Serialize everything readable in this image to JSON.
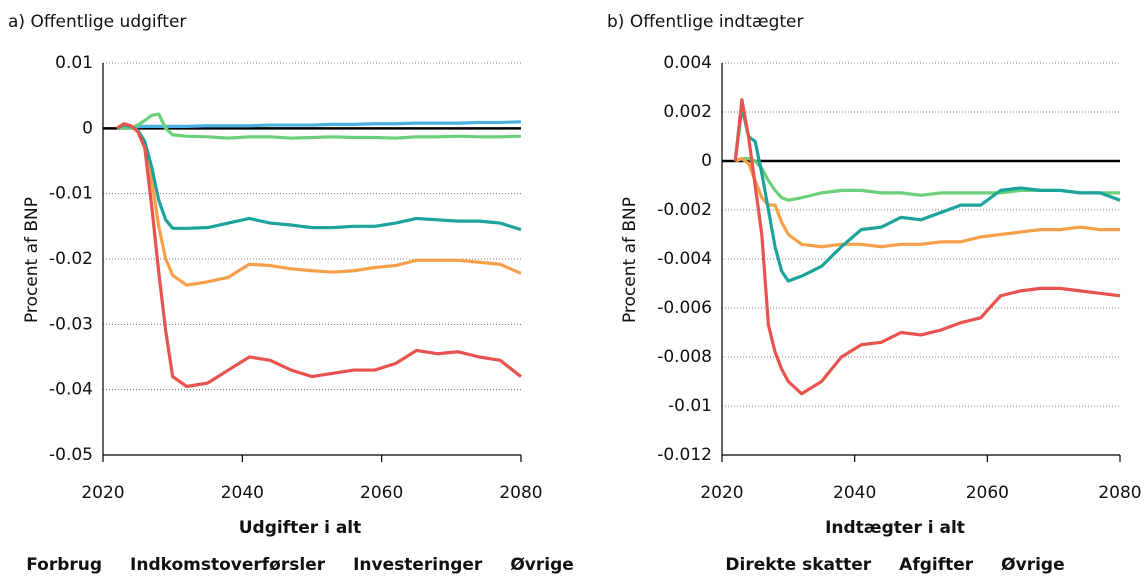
{
  "chart_data": [
    {
      "type": "line",
      "title": "a) Offentlige udgifter",
      "y_label": "Procent af BNP",
      "x": [
        2022,
        2023,
        2024,
        2025,
        2026,
        2027,
        2028,
        2029,
        2030,
        2032,
        2035,
        2038,
        2041,
        2044,
        2047,
        2050,
        2053,
        2056,
        2059,
        2062,
        2065,
        2068,
        2071,
        2074,
        2077,
        2080
      ],
      "xlim": [
        2020,
        2080
      ],
      "xticks": [
        2020,
        2040,
        2060,
        2080
      ],
      "ylim": [
        -0.05,
        0.01
      ],
      "yticks": [
        -0.05,
        -0.04,
        -0.03,
        -0.02,
        -0.01,
        0,
        0.01
      ],
      "grid": true,
      "series": [
        {
          "name": "Udgifter i alt",
          "color": "#e8524f",
          "values": [
            0,
            0.0007,
            0.0004,
            -0.0005,
            -0.003,
            -0.012,
            -0.022,
            -0.031,
            -0.038,
            -0.0395,
            -0.039,
            -0.037,
            -0.035,
            -0.0355,
            -0.037,
            -0.038,
            -0.0375,
            -0.037,
            -0.037,
            -0.036,
            -0.034,
            -0.0345,
            -0.0342,
            -0.035,
            -0.0355,
            -0.038
          ]
        },
        {
          "name": "Forbrug",
          "color": "#1ba39c",
          "values": [
            0,
            0.0005,
            0.0003,
            -0.0003,
            -0.002,
            -0.006,
            -0.011,
            -0.014,
            -0.0153,
            -0.0153,
            -0.0152,
            -0.0145,
            -0.0138,
            -0.0145,
            -0.0148,
            -0.0152,
            -0.0152,
            -0.015,
            -0.015,
            -0.0145,
            -0.0138,
            -0.014,
            -0.0142,
            -0.0142,
            -0.0145,
            -0.0155
          ]
        },
        {
          "name": "Indkomstoverførsler",
          "color": "#f7a04a",
          "values": [
            0,
            0.0006,
            0.0003,
            -0.0004,
            -0.0025,
            -0.008,
            -0.015,
            -0.02,
            -0.0225,
            -0.024,
            -0.0235,
            -0.0228,
            -0.0208,
            -0.021,
            -0.0215,
            -0.0218,
            -0.022,
            -0.0218,
            -0.0213,
            -0.021,
            -0.0202,
            -0.0202,
            -0.0202,
            -0.0205,
            -0.0208,
            -0.0222
          ]
        },
        {
          "name": "Investeringer",
          "color": "#6cd07a",
          "values": [
            0,
            0.0001,
            0,
            0.0005,
            0.0012,
            0.002,
            0.0022,
            0,
            -0.001,
            -0.0012,
            -0.0013,
            -0.0015,
            -0.0013,
            -0.0013,
            -0.0015,
            -0.0014,
            -0.0013,
            -0.0014,
            -0.0014,
            -0.0015,
            -0.0013,
            -0.0013,
            -0.0012,
            -0.0013,
            -0.0013,
            -0.0012
          ]
        },
        {
          "name": "Øvrige",
          "color": "#4ab0e0",
          "values": [
            0,
            0.0001,
            0.0002,
            0.0003,
            0.0003,
            0.0003,
            0.0003,
            0.0003,
            0.0003,
            0.0003,
            0.0004,
            0.0004,
            0.0004,
            0.0005,
            0.0005,
            0.0005,
            0.0006,
            0.0006,
            0.0007,
            0.0007,
            0.0008,
            0.0008,
            0.0008,
            0.0009,
            0.0009,
            0.001
          ]
        }
      ]
    },
    {
      "type": "line",
      "title": "b) Offentlige indtægter",
      "y_label": "Procent af BNP",
      "x": [
        2022,
        2023,
        2024,
        2025,
        2026,
        2027,
        2028,
        2029,
        2030,
        2032,
        2035,
        2038,
        2041,
        2044,
        2047,
        2050,
        2053,
        2056,
        2059,
        2062,
        2065,
        2068,
        2071,
        2074,
        2077,
        2080
      ],
      "xlim": [
        2020,
        2080
      ],
      "xticks": [
        2020,
        2040,
        2060,
        2080
      ],
      "ylim": [
        -0.012,
        0.004
      ],
      "yticks": [
        -0.012,
        -0.01,
        -0.008,
        -0.006,
        -0.004,
        -0.002,
        0,
        0.002,
        0.004
      ],
      "grid": true,
      "series": [
        {
          "name": "Indtægter i alt",
          "color": "#e8524f",
          "values": [
            0,
            0.0025,
            0.001,
            -0.001,
            -0.003,
            -0.0067,
            -0.0078,
            -0.0085,
            -0.009,
            -0.0095,
            -0.009,
            -0.008,
            -0.0075,
            -0.0074,
            -0.007,
            -0.0071,
            -0.0069,
            -0.0066,
            -0.0064,
            -0.0055,
            -0.0053,
            -0.0052,
            -0.0052,
            -0.0053,
            -0.0054,
            -0.0055
          ]
        },
        {
          "name": "Direkte skatter",
          "color": "#1ba39c",
          "values": [
            0,
            0.0022,
            0.001,
            0.0008,
            -0.0005,
            -0.002,
            -0.0035,
            -0.0045,
            -0.0049,
            -0.0047,
            -0.0043,
            -0.0035,
            -0.0028,
            -0.0027,
            -0.0023,
            -0.0024,
            -0.0021,
            -0.0018,
            -0.0018,
            -0.0012,
            -0.0011,
            -0.0012,
            -0.0012,
            -0.0013,
            -0.0013,
            -0.0016
          ]
        },
        {
          "name": "Afgifter",
          "color": "#f7a04a",
          "values": [
            0,
            0.0001,
            -0.0001,
            -0.0008,
            -0.0015,
            -0.0018,
            -0.0018,
            -0.0025,
            -0.003,
            -0.0034,
            -0.0035,
            -0.0034,
            -0.0034,
            -0.0035,
            -0.0034,
            -0.0034,
            -0.0033,
            -0.0033,
            -0.0031,
            -0.003,
            -0.0029,
            -0.0028,
            -0.0028,
            -0.0027,
            -0.0028,
            -0.0028
          ]
        },
        {
          "name": "Øvrige",
          "color": "#6cd07a",
          "values": [
            0,
            0.0001,
            0.0001,
            0,
            -0.0003,
            -0.0008,
            -0.0012,
            -0.0015,
            -0.0016,
            -0.0015,
            -0.0013,
            -0.0012,
            -0.0012,
            -0.0013,
            -0.0013,
            -0.0014,
            -0.0013,
            -0.0013,
            -0.0013,
            -0.0013,
            -0.0012,
            -0.0012,
            -0.0012,
            -0.0013,
            -0.0013,
            -0.0013
          ]
        }
      ]
    }
  ]
}
